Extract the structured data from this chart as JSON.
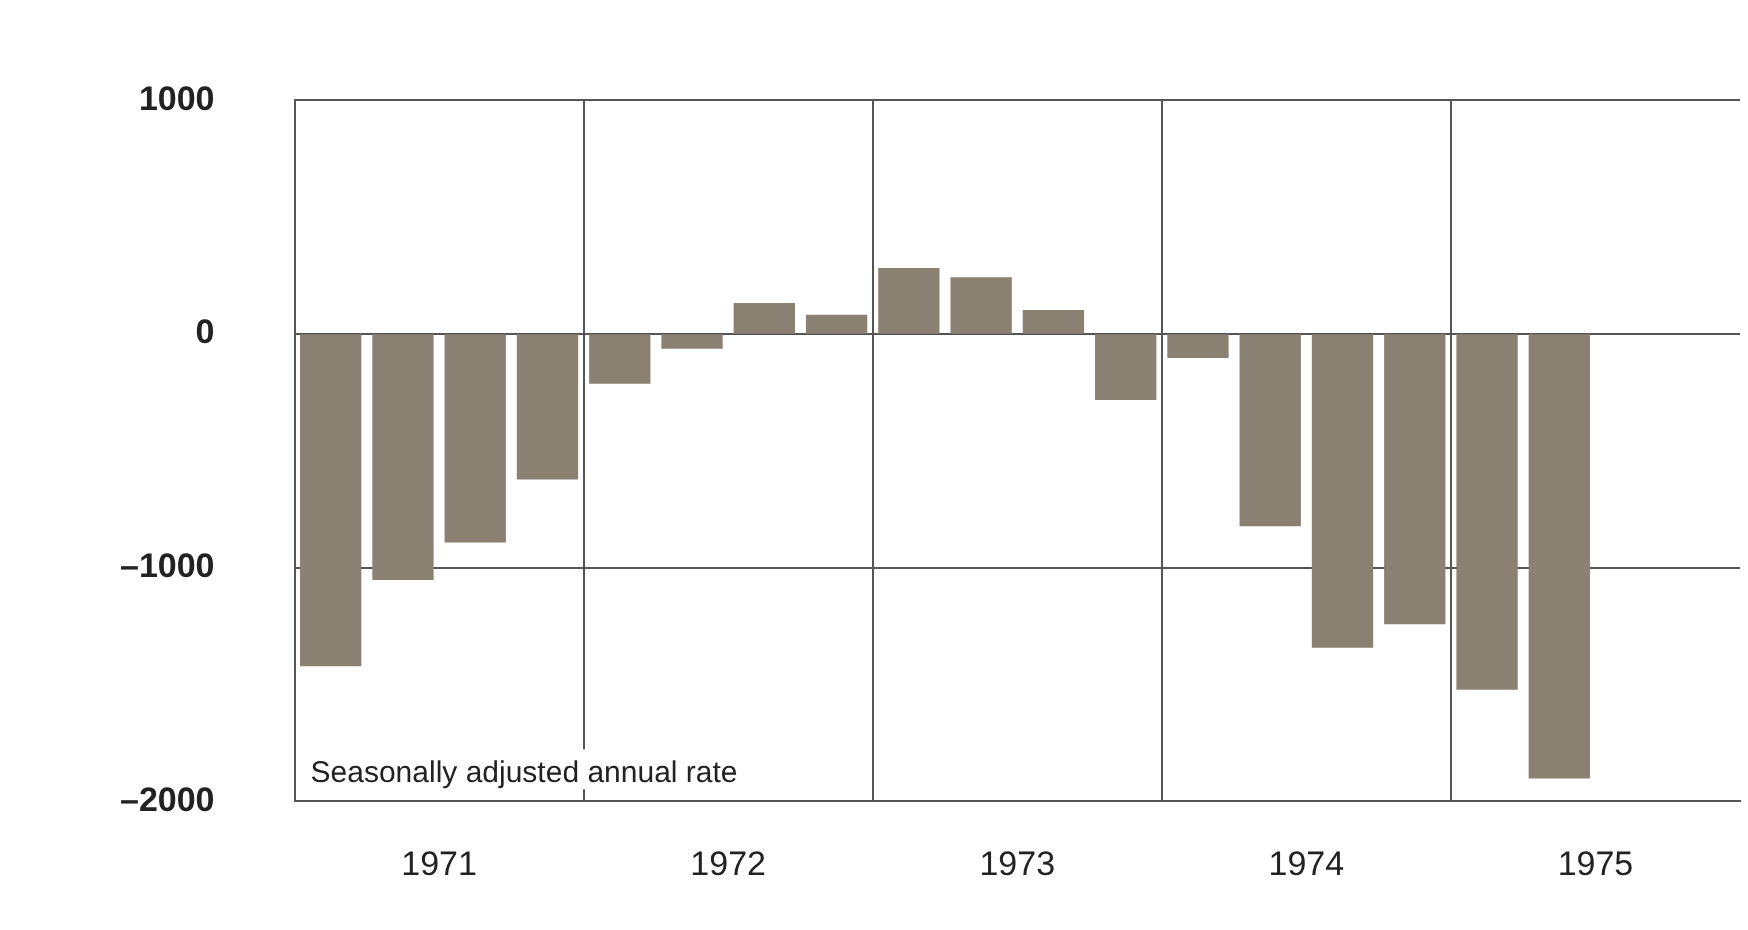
{
  "chart_data": {
    "type": "bar",
    "x": [
      1971.125,
      1971.375,
      1971.625,
      1971.875,
      1972.125,
      1972.375,
      1972.625,
      1972.875,
      1973.125,
      1973.375,
      1973.625,
      1973.875,
      1974.125,
      1974.375,
      1974.625,
      1974.875,
      1975.125,
      1975.375
    ],
    "values": [
      -1420,
      -1050,
      -890,
      -620,
      -210,
      -60,
      130,
      80,
      280,
      240,
      100,
      -280,
      -100,
      -820,
      -1340,
      -1240,
      -1520,
      -1900
    ],
    "color": "#8a8172",
    "xlim": [
      1971,
      1976
    ],
    "xticks": [
      {
        "value": 1971.5,
        "label": "1971"
      },
      {
        "value": 1972,
        "label": null
      },
      {
        "value": 1972.5,
        "label": "1972"
      },
      {
        "value": 1973,
        "label": null
      },
      {
        "value": 1973.5,
        "label": "1973"
      },
      {
        "value": 1974,
        "label": null
      },
      {
        "value": 1974.5,
        "label": "1974"
      },
      {
        "value": 1975,
        "label": null
      },
      {
        "value": 1975.5,
        "label": "1975"
      }
    ],
    "ylim": [
      -2000,
      1000
    ],
    "yticks": [
      {
        "value": -2000,
        "label": "–2000"
      },
      {
        "value": -1000,
        "label": "–1000"
      },
      0,
      1000
    ],
    "grid": true,
    "annotations": [
      "Seasonally adjusted annual rate"
    ]
  }
}
